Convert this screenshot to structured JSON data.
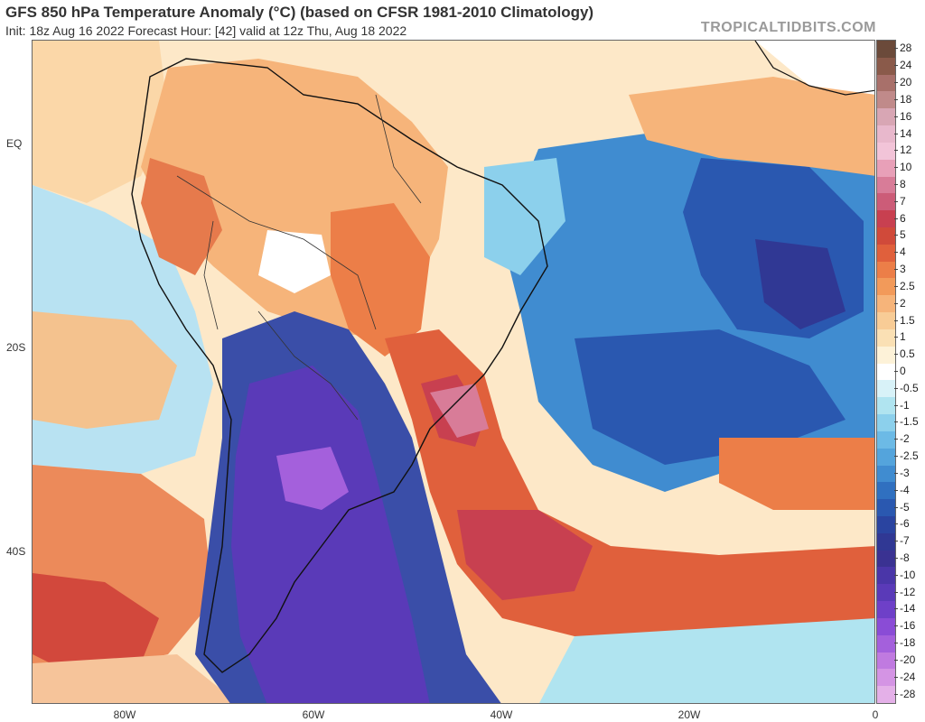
{
  "header": {
    "title": "GFS 850 hPa Temperature Anomaly (°C) (based on CFSR 1981-2010 Climatology)",
    "subtitle": "Init: 18z Aug 16 2022   Forecast Hour: [42]   valid at 12z Thu, Aug 18 2022",
    "source": "TROPICALTIDBITS.COM"
  },
  "axes": {
    "lat_labels": [
      "EQ",
      "20S",
      "40S"
    ],
    "lon_labels": [
      "80W",
      "60W",
      "40W",
      "20W",
      "0"
    ]
  },
  "colorbar": {
    "labels": [
      "28",
      "24",
      "20",
      "18",
      "16",
      "14",
      "12",
      "10",
      "8",
      "7",
      "6",
      "5",
      "4",
      "3",
      "2.5",
      "2",
      "1.5",
      "1",
      "0.5",
      "0",
      "-0.5",
      "-1",
      "-1.5",
      "-2",
      "-2.5",
      "-3",
      "-4",
      "-5",
      "-6",
      "-7",
      "-8",
      "-10",
      "-12",
      "-14",
      "-16",
      "-18",
      "-20",
      "-24",
      "-28"
    ],
    "colors": [
      "#6b4a3a",
      "#8a5a4a",
      "#a8706a",
      "#c08a8a",
      "#d8a6b4",
      "#e8b8cc",
      "#f2c4d8",
      "#e8a0b8",
      "#d87c98",
      "#cc5c78",
      "#c84050",
      "#d04a3a",
      "#e0603c",
      "#ec7e48",
      "#f29a5a",
      "#f6b47a",
      "#f8cc96",
      "#fae0b4",
      "#fdf2d8",
      "#ffffff",
      "#d8f2f8",
      "#b0e4f0",
      "#8cd0ec",
      "#6cbae6",
      "#54a4dc",
      "#408cd0",
      "#3070c0",
      "#2a58b0",
      "#2a44a0",
      "#303894",
      "#3a3292",
      "#4a36a8",
      "#5a3ab8",
      "#6e40c8",
      "#8a4cd6",
      "#a460dc",
      "#c07ae0",
      "#d494e4",
      "#e4b0e8"
    ]
  },
  "map": {
    "features": [
      "temperature-anomaly-field",
      "coastlines",
      "country-borders",
      "state-borders"
    ]
  }
}
